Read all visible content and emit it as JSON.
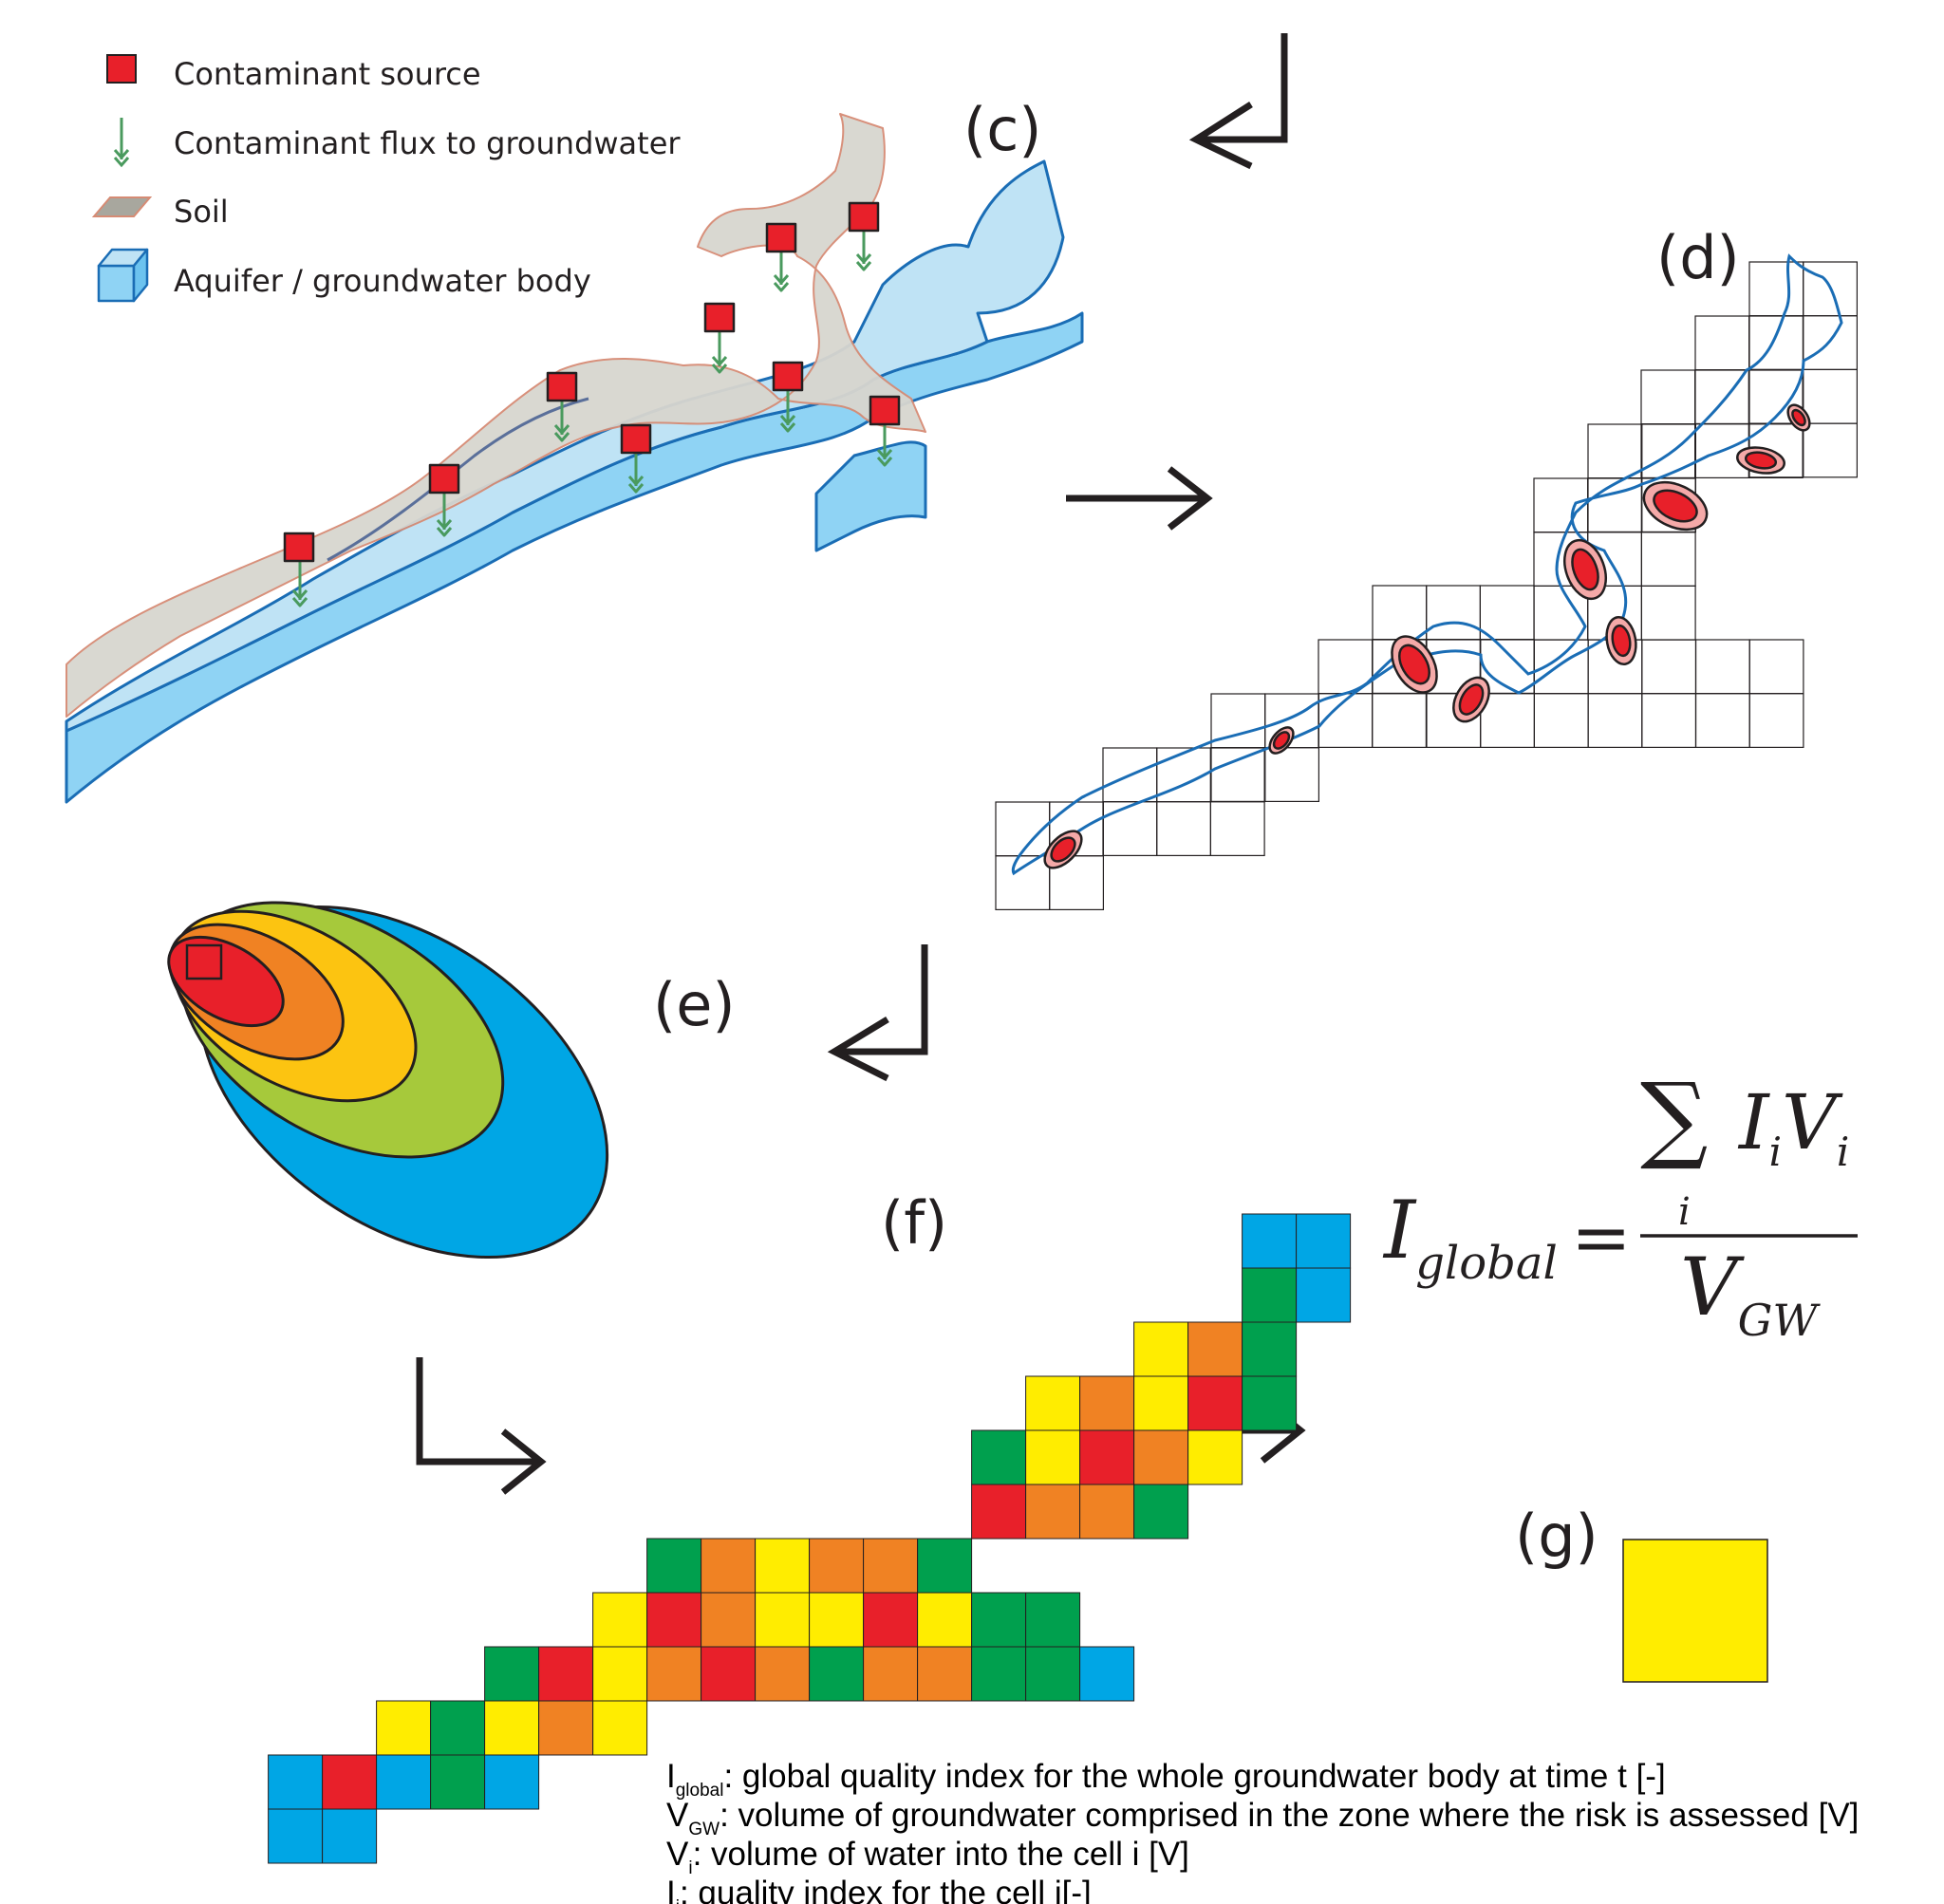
{
  "legend": {
    "source": "Contaminant source",
    "flux": "Contaminant flux to groundwater",
    "soil": "Soil",
    "aquifer": "Aquifer / groundwater body"
  },
  "panels": {
    "c": "(c)",
    "d": "(d)",
    "e": "(e)",
    "f": "(f)",
    "g": "(g)"
  },
  "formula": {
    "lhs_symbol": "I",
    "lhs_subscript": "global",
    "equals": "=",
    "sum_symbol": "∑",
    "sum_index": "i",
    "num_I": "I",
    "num_V": "V",
    "num_sub": "i",
    "den_symbol": "V",
    "den_subscript": "GW"
  },
  "footnotes": [
    {
      "symbol": "I",
      "subscript": "global",
      "text": ": global quality index for the whole groundwater body at time t [-]"
    },
    {
      "symbol": "V",
      "subscript": "GW",
      "text": ": volume of groundwater comprised in the zone where the risk is assessed [V]"
    },
    {
      "symbol": "V",
      "subscript": "i",
      "text": ": volume of water into the cell i [V]"
    },
    {
      "symbol": "I",
      "subscript": "i",
      "text": ": quality index for the cell i[-]"
    }
  ],
  "colors": {
    "red": "#e8202a",
    "orange": "#f08223",
    "yellow": "#ffed00",
    "green": "#00a04e",
    "blue": "#00a6e5",
    "light_green": "#a6c93b",
    "amber": "#fcc411",
    "soil": "#d8d6cf",
    "aquifer_light": "#bfe3f5",
    "aquifer_mid": "#8fd3f4",
    "aquifer_line": "#1a6db5",
    "flux_arrow": "#4a9a5e",
    "g_result": "#ffed00"
  },
  "grid_f_rows": [
    "......................BB",
    "......................GB",
    "....................YOG.",
    "..................YOYRG.",
    ".................GYROY..",
    ".................ROOG...",
    "...........GOYOOG.......",
    "..........YROYYRYGG.....",
    "........GRYOROGOOGGB....",
    "......YGYOY.............",
    "....BRBGB...............",
    "....BB.................."
  ]
}
